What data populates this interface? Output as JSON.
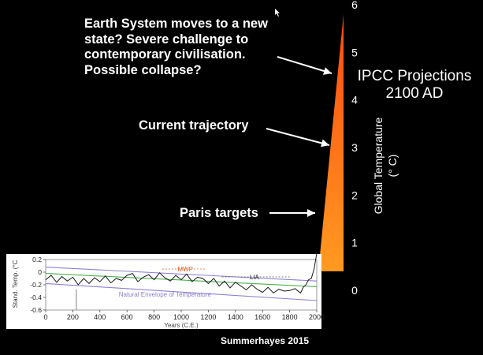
{
  "annotations": {
    "collapse_lines": [
      "Earth System moves to a new",
      "state? Severe challenge to",
      "contemporary civilisation.",
      "Possible collapse?"
    ],
    "current": "Current trajectory",
    "paris": "Paris targets"
  },
  "projection_label": [
    "IPCC Projections",
    "2100 AD"
  ],
  "credit": "Summerhayes 2015",
  "colors": {
    "background": "#000000",
    "text": "#ffffff",
    "wedge_top": "#ff4a10",
    "wedge_bottom": "#ff9a20",
    "paleo_line": "#1a1a1a",
    "envelope_green": "#4caf50",
    "envelope_purple": "#8f80d0",
    "mwp_arrow": "#e06020"
  },
  "chart_data": [
    {
      "type": "area",
      "ylabel": "Global  Temperature\n(° C)",
      "ylim": [
        0,
        6
      ],
      "y_ticks": [
        "0",
        "1",
        "2",
        "3",
        "4",
        "5",
        "6"
      ],
      "x": [
        2000,
        2100
      ],
      "series": [
        {
          "values_low": [
            0.4,
            0.4
          ],
          "values_high": [
            0.4,
            5.8
          ]
        }
      ]
    },
    {
      "type": "line",
      "ylabel": "Stand. Temp. (°C",
      "xlabel": "Years (C.E.)",
      "xlim": [
        0,
        2000
      ],
      "ylim": [
        -0.6,
        0.2
      ],
      "x_ticks": [
        "0",
        "200",
        "400",
        "600",
        "800",
        "1000",
        "1200",
        "1400",
        "1600",
        "1800",
        "2000"
      ],
      "y_ticks": [
        "0.2",
        "0",
        "-0.2",
        "-0.4",
        "-0.6"
      ],
      "annotations": [
        "MWP",
        "LIA",
        "Natural Envelope of Temperature"
      ],
      "envelope_green": {
        "x": [
          0,
          2000
        ],
        "values": [
          -0.02,
          -0.23
        ]
      },
      "envelope_purple_upper": {
        "x": [
          0,
          2000
        ],
        "values": [
          0.08,
          -0.14
        ]
      },
      "envelope_purple_lower": {
        "x": [
          0,
          2000
        ],
        "values": [
          -0.18,
          -0.45
        ]
      },
      "series": [
        {
          "x": [
            0,
            40,
            80,
            120,
            160,
            200,
            240,
            280,
            320,
            360,
            400,
            440,
            480,
            520,
            560,
            600,
            640,
            680,
            720,
            760,
            800,
            840,
            880,
            920,
            960,
            1000,
            1040,
            1080,
            1120,
            1160,
            1200,
            1240,
            1280,
            1320,
            1360,
            1400,
            1440,
            1480,
            1520,
            1560,
            1600,
            1640,
            1680,
            1720,
            1760,
            1800,
            1840,
            1880,
            1900,
            1920,
            1940,
            1960,
            1980,
            2000
          ],
          "values": [
            -0.12,
            -0.05,
            -0.16,
            -0.07,
            -0.14,
            -0.08,
            -0.2,
            -0.1,
            -0.18,
            -0.09,
            -0.15,
            -0.06,
            -0.17,
            -0.1,
            -0.13,
            -0.05,
            -0.02,
            -0.15,
            -0.08,
            -0.04,
            -0.12,
            -0.01,
            -0.09,
            -0.14,
            -0.05,
            -0.12,
            -0.03,
            -0.15,
            -0.08,
            -0.1,
            -0.18,
            -0.1,
            -0.22,
            -0.14,
            -0.25,
            -0.16,
            -0.22,
            -0.28,
            -0.2,
            -0.27,
            -0.32,
            -0.24,
            -0.33,
            -0.27,
            -0.3,
            -0.29,
            -0.26,
            -0.33,
            -0.24,
            -0.2,
            -0.12,
            -0.1,
            0.05,
            0.3
          ]
        }
      ]
    }
  ]
}
